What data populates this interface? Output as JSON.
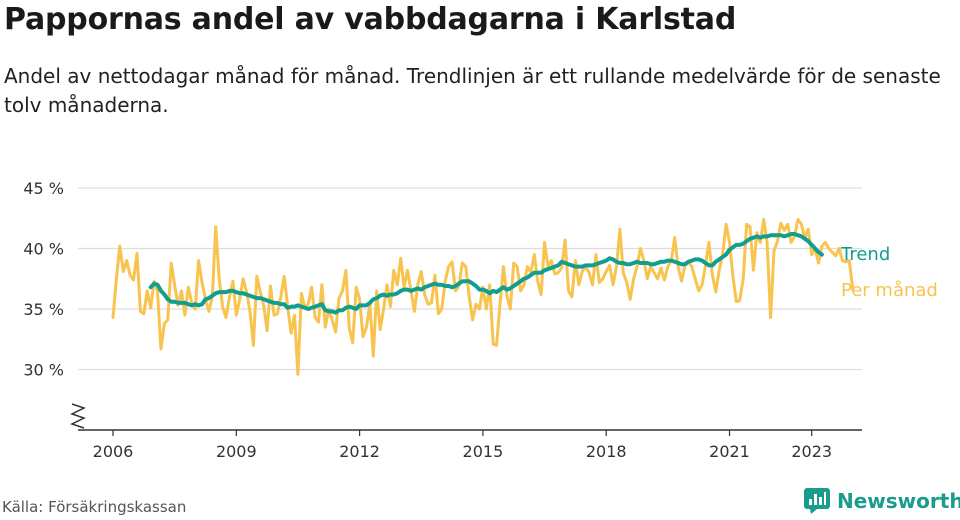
{
  "title": "Pappornas andel av vabbdagarna i Karlstad",
  "subtitle": "Andel av nettodagar månad för månad. Trendlinjen är ett rullande medelvärde för de senaste tolv månaderna.",
  "source": "Källa: Försäkringskassan",
  "brand": "Newsworthy",
  "colors": {
    "trend": "#129e8f",
    "monthly": "#f8c44f",
    "grid": "#dddddd",
    "axis": "#333333",
    "brand": "#1a9c8c"
  },
  "chart_data": {
    "type": "line",
    "ylim": [
      25,
      45
    ],
    "yticks": [
      30,
      35,
      40,
      45
    ],
    "ytick_labels": [
      "30 %",
      "35 %",
      "40 %",
      "45 %"
    ],
    "y_axis_break": true,
    "xlim": [
      2005.7,
      2024.0
    ],
    "xticks": [
      2006,
      2009,
      2012,
      2015,
      2018,
      2021,
      2023
    ],
    "xtick_labels": [
      "2006",
      "2009",
      "2012",
      "2015",
      "2018",
      "2021",
      "2023"
    ],
    "series": [
      {
        "name": "Per månad",
        "color": "#f8c44f",
        "x_start": 2006.0,
        "step": 0.08333,
        "values": [
          34.3,
          37.5,
          40.2,
          38.1,
          39.0,
          37.8,
          37.4,
          39.6,
          34.8,
          34.6,
          36.5,
          35.1,
          37.3,
          36.5,
          31.7,
          33.8,
          34.1,
          38.8,
          37.0,
          35.3,
          36.5,
          34.5,
          36.8,
          35.5,
          35.0,
          39.0,
          37.2,
          35.8,
          34.8,
          36.0,
          41.8,
          37.5,
          35.2,
          34.3,
          36.0,
          37.3,
          34.5,
          35.8,
          37.5,
          36.4,
          34.8,
          32.0,
          37.7,
          36.4,
          35.3,
          33.2,
          36.9,
          34.5,
          34.6,
          36.0,
          37.7,
          35.2,
          33.0,
          34.5,
          29.6,
          36.3,
          35.1,
          35.4,
          36.8,
          34.3,
          33.9,
          37.0,
          33.5,
          35.0,
          34.1,
          33.1,
          35.9,
          36.5,
          38.2,
          33.4,
          32.2,
          36.8,
          35.8,
          32.7,
          33.5,
          35.4,
          31.1,
          36.5,
          33.3,
          35.0,
          37.0,
          35.2,
          38.2,
          37.0,
          39.2,
          36.8,
          38.2,
          36.5,
          34.8,
          37.0,
          38.1,
          36.2,
          35.4,
          35.5,
          37.8,
          34.6,
          35.0,
          37.3,
          38.5,
          38.9,
          36.5,
          36.9,
          38.8,
          38.5,
          36.0,
          34.1,
          35.4,
          35.0,
          36.8,
          35.0,
          37.0,
          32.1,
          32.0,
          35.4,
          38.5,
          36.1,
          35.0,
          38.8,
          38.5,
          36.5,
          37.0,
          38.5,
          38.0,
          39.5,
          37.3,
          36.2,
          40.5,
          38.5,
          39.0,
          37.9,
          38.0,
          38.4,
          40.7,
          36.5,
          36.0,
          39.0,
          37.0,
          38.1,
          38.5,
          38.0,
          37.0,
          39.5,
          37.2,
          37.5,
          38.1,
          38.6,
          37.0,
          38.5,
          41.6,
          38.0,
          37.2,
          35.8,
          37.5,
          38.5,
          40.0,
          39.0,
          37.5,
          38.5,
          38.0,
          37.5,
          38.4,
          37.4,
          38.5,
          39.0,
          40.9,
          38.5,
          37.3,
          38.6,
          38.9,
          38.5,
          37.5,
          36.5,
          37.0,
          38.6,
          40.5,
          37.8,
          36.4,
          38.2,
          39.5,
          42.0,
          40.5,
          37.7,
          35.6,
          35.7,
          37.5,
          42.0,
          41.8,
          38.2,
          41.3,
          40.5,
          42.4,
          40.5,
          34.3,
          39.8,
          40.6,
          42.1,
          41.5,
          42.0,
          40.5,
          41.0,
          42.4,
          42.0,
          40.8,
          41.6,
          39.5,
          40.0,
          38.8,
          40.2,
          40.5,
          40.0,
          39.7,
          39.4,
          40.0,
          39.0,
          38.9,
          39.0,
          36.6
        ]
      },
      {
        "name": "Trend",
        "color": "#129e8f",
        "x_start": 2006.9167,
        "step": 0.08333,
        "values": [
          36.8,
          37.1,
          37.0,
          36.5,
          36.2,
          35.8,
          35.6,
          35.6,
          35.5,
          35.5,
          35.5,
          35.4,
          35.3,
          35.4,
          35.3,
          35.4,
          35.8,
          35.9,
          36.1,
          36.3,
          36.4,
          36.4,
          36.4,
          36.5,
          36.5,
          36.4,
          36.3,
          36.3,
          36.2,
          36.1,
          36.0,
          35.9,
          35.9,
          35.8,
          35.7,
          35.6,
          35.5,
          35.5,
          35.4,
          35.4,
          35.1,
          35.2,
          35.2,
          35.3,
          35.2,
          35.1,
          35.0,
          35.1,
          35.2,
          35.3,
          35.4,
          34.9,
          34.8,
          34.8,
          34.7,
          34.9,
          34.9,
          35.1,
          35.2,
          35.1,
          35.0,
          35.3,
          35.3,
          35.3,
          35.5,
          35.8,
          35.9,
          36.1,
          36.2,
          36.1,
          36.2,
          36.2,
          36.3,
          36.5,
          36.6,
          36.6,
          36.5,
          36.6,
          36.7,
          36.6,
          36.8,
          36.9,
          37.0,
          37.1,
          37.0,
          37.0,
          36.9,
          36.9,
          36.8,
          36.9,
          37.1,
          37.3,
          37.3,
          37.3,
          37.1,
          36.9,
          36.6,
          36.6,
          36.5,
          36.3,
          36.5,
          36.4,
          36.6,
          36.8,
          36.6,
          36.7,
          36.9,
          37.1,
          37.3,
          37.5,
          37.6,
          37.8,
          38.0,
          38.0,
          38.0,
          38.2,
          38.3,
          38.4,
          38.5,
          38.6,
          38.9,
          38.8,
          38.7,
          38.6,
          38.5,
          38.5,
          38.5,
          38.6,
          38.6,
          38.6,
          38.7,
          38.8,
          38.9,
          39.0,
          39.2,
          39.1,
          38.9,
          38.8,
          38.8,
          38.7,
          38.7,
          38.8,
          38.9,
          38.8,
          38.8,
          38.8,
          38.7,
          38.7,
          38.8,
          38.9,
          38.9,
          39.0,
          39.0,
          38.9,
          38.8,
          38.7,
          38.7,
          38.9,
          39.0,
          39.1,
          39.1,
          39.0,
          38.8,
          38.6,
          38.6,
          38.9,
          39.1,
          39.3,
          39.5,
          39.9,
          40.1,
          40.3,
          40.3,
          40.4,
          40.6,
          40.8,
          40.9,
          41.0,
          40.9,
          41.0,
          41.0,
          41.1,
          41.1,
          41.1,
          41.1,
          41.0,
          41.1,
          41.2,
          41.2,
          41.1,
          41.0,
          40.8,
          40.6,
          40.3,
          40.0,
          39.7,
          39.5
        ]
      }
    ],
    "series_labels": [
      "Trend",
      "Per månad"
    ]
  }
}
